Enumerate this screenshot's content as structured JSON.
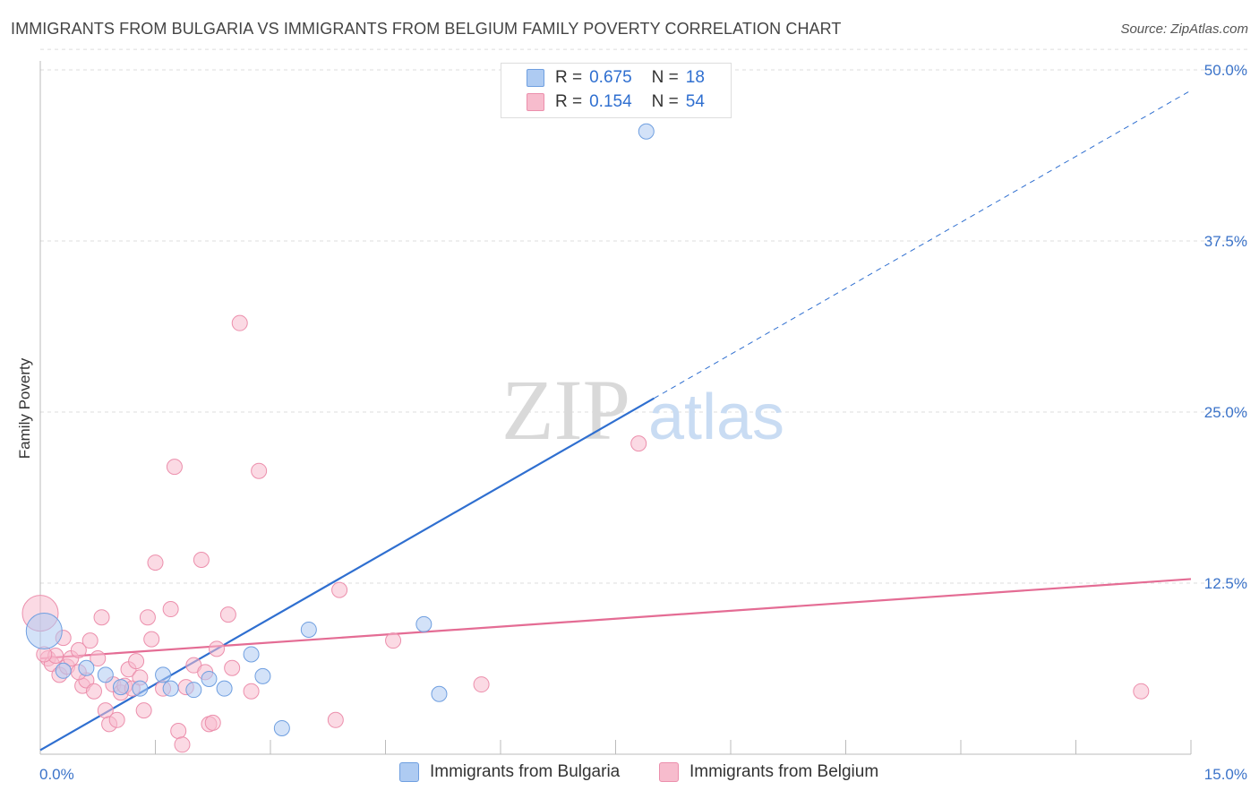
{
  "header": {
    "title": "IMMIGRANTS FROM BULGARIA VS IMMIGRANTS FROM BELGIUM FAMILY POVERTY CORRELATION CHART",
    "source": "Source: ZipAtlas.com"
  },
  "legend": {
    "bulgaria": {
      "r_label": "R =",
      "r_value": "0.675",
      "n_label": "N =",
      "n_value": "18"
    },
    "belgium": {
      "r_label": "R =",
      "r_value": "0.154",
      "n_label": "N =",
      "n_value": "54"
    }
  },
  "watermark": {
    "zip": "ZIP",
    "atlas": "atlas"
  },
  "colors": {
    "bulgaria_fill": "#aecbf2",
    "bulgaria_stroke": "#6f9fe0",
    "bulgaria_line": "#2f6fd0",
    "belgium_fill": "#f7bccd",
    "belgium_stroke": "#ec8fac",
    "belgium_line": "#e46c94",
    "tick_text": "#3b73c9",
    "grid": "#dddddd"
  },
  "chart_data": {
    "type": "scatter",
    "title": "IMMIGRANTS FROM BULGARIA VS IMMIGRANTS FROM BELGIUM FAMILY POVERTY CORRELATION CHART",
    "xlabel": "",
    "ylabel": "Family Poverty",
    "xlim": [
      0,
      15
    ],
    "ylim": [
      0,
      50
    ],
    "x_tick_labels": [
      "0.0%",
      "15.0%"
    ],
    "y_ticks": [
      12.5,
      25.0,
      37.5,
      50.0
    ],
    "y_tick_labels": [
      "12.5%",
      "25.0%",
      "37.5%",
      "50.0%"
    ],
    "legend_position": "top-center",
    "series": [
      {
        "name": "Immigrants from Bulgaria",
        "color": "#aecbf2",
        "points": [
          [
            0.05,
            9.0
          ],
          [
            0.3,
            6.1
          ],
          [
            0.6,
            6.3
          ],
          [
            0.85,
            5.8
          ],
          [
            1.05,
            4.9
          ],
          [
            1.3,
            4.8
          ],
          [
            1.6,
            5.8
          ],
          [
            1.7,
            4.8
          ],
          [
            2.0,
            4.7
          ],
          [
            2.2,
            5.5
          ],
          [
            2.4,
            4.8
          ],
          [
            2.75,
            7.3
          ],
          [
            2.9,
            5.7
          ],
          [
            3.15,
            1.9
          ],
          [
            3.5,
            9.1
          ],
          [
            5.0,
            9.5
          ],
          [
            5.2,
            4.4
          ],
          [
            7.9,
            45.5
          ]
        ],
        "trend": {
          "x": [
            0.0,
            8.0
          ],
          "y": [
            0.3,
            26.0
          ],
          "dashed_extension": {
            "x": [
              8.0,
              15.0
            ],
            "y": [
              26.0,
              48.5
            ]
          }
        }
      },
      {
        "name": "Immigrants from Belgium",
        "color": "#f7bccd",
        "points": [
          [
            0.0,
            10.3
          ],
          [
            0.1,
            7.0
          ],
          [
            0.15,
            6.6
          ],
          [
            0.2,
            7.2
          ],
          [
            0.25,
            5.8
          ],
          [
            0.3,
            8.5
          ],
          [
            0.35,
            6.4
          ],
          [
            0.4,
            7.0
          ],
          [
            0.5,
            7.6
          ],
          [
            0.55,
            5.0
          ],
          [
            0.6,
            5.4
          ],
          [
            0.65,
            8.3
          ],
          [
            0.7,
            4.6
          ],
          [
            0.75,
            7.0
          ],
          [
            0.8,
            10.0
          ],
          [
            0.85,
            3.2
          ],
          [
            0.9,
            2.2
          ],
          [
            0.95,
            5.1
          ],
          [
            1.0,
            2.5
          ],
          [
            1.05,
            4.5
          ],
          [
            1.1,
            5.0
          ],
          [
            1.15,
            6.2
          ],
          [
            1.2,
            4.8
          ],
          [
            1.25,
            6.8
          ],
          [
            1.3,
            5.6
          ],
          [
            1.35,
            3.2
          ],
          [
            1.4,
            10.0
          ],
          [
            1.45,
            8.4
          ],
          [
            1.5,
            14.0
          ],
          [
            1.6,
            4.8
          ],
          [
            1.7,
            10.6
          ],
          [
            1.75,
            21.0
          ],
          [
            1.8,
            1.7
          ],
          [
            1.85,
            0.7
          ],
          [
            1.9,
            4.9
          ],
          [
            2.0,
            6.5
          ],
          [
            2.1,
            14.2
          ],
          [
            2.15,
            6.0
          ],
          [
            2.2,
            2.2
          ],
          [
            2.25,
            2.3
          ],
          [
            2.3,
            7.7
          ],
          [
            2.45,
            10.2
          ],
          [
            2.5,
            6.3
          ],
          [
            2.6,
            31.5
          ],
          [
            2.75,
            4.6
          ],
          [
            2.85,
            20.7
          ],
          [
            3.85,
            2.5
          ],
          [
            3.9,
            12.0
          ],
          [
            4.6,
            8.3
          ],
          [
            5.75,
            5.1
          ],
          [
            7.8,
            22.7
          ],
          [
            14.35,
            4.6
          ],
          [
            0.5,
            6.0
          ],
          [
            0.05,
            7.3
          ]
        ],
        "trend": {
          "x": [
            0.0,
            15.0
          ],
          "y": [
            7.0,
            12.8
          ]
        }
      }
    ]
  },
  "bottom_legend": {
    "bulgaria": "Immigrants from Bulgaria",
    "belgium": "Immigrants from Belgium"
  }
}
